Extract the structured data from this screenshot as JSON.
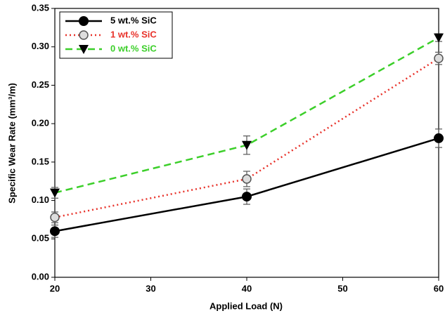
{
  "chart_data": {
    "type": "line",
    "xlabel": "Applied Load (N)",
    "ylabel": "Specific Wear Rate (mm³/m)",
    "x": [
      20,
      40,
      60
    ],
    "series": [
      {
        "name": "5 wt.% SiC",
        "color": "#000000",
        "marker": "circle",
        "linestyle": "solid",
        "values": [
          0.06,
          0.105,
          0.181
        ],
        "errors": [
          0.008,
          0.01,
          0.012
        ]
      },
      {
        "name": "1 wt.% SiC",
        "color": "#e8322a",
        "marker": "open-circle",
        "linestyle": "dotted",
        "values": [
          0.078,
          0.128,
          0.285
        ],
        "errors": [
          0.007,
          0.01,
          0.008
        ]
      },
      {
        "name": "0 wt.% SiC",
        "color": "#3ccf2a",
        "marker": "triangle-down",
        "linestyle": "dashed",
        "values": [
          0.11,
          0.172,
          0.312
        ],
        "errors": [
          0.007,
          0.012,
          0.005
        ]
      }
    ],
    "xlim": [
      20,
      60
    ],
    "xticks": [
      20,
      30,
      40,
      50,
      60
    ],
    "ylim": [
      0,
      0.35
    ],
    "yticks": [
      {
        "value": 0,
        "label": "0.00"
      },
      {
        "value": 0.05,
        "label": "0.05"
      },
      {
        "value": 0.1,
        "label": "0.10"
      },
      {
        "value": 0.15,
        "label": "0.15"
      },
      {
        "value": 0.2,
        "label": "0.20"
      },
      {
        "value": 0.25,
        "label": "0.25"
      },
      {
        "value": 0.3,
        "label": "0.30"
      },
      {
        "value": 0.35,
        "label": "0.35"
      }
    ],
    "legend": "upper-left"
  }
}
